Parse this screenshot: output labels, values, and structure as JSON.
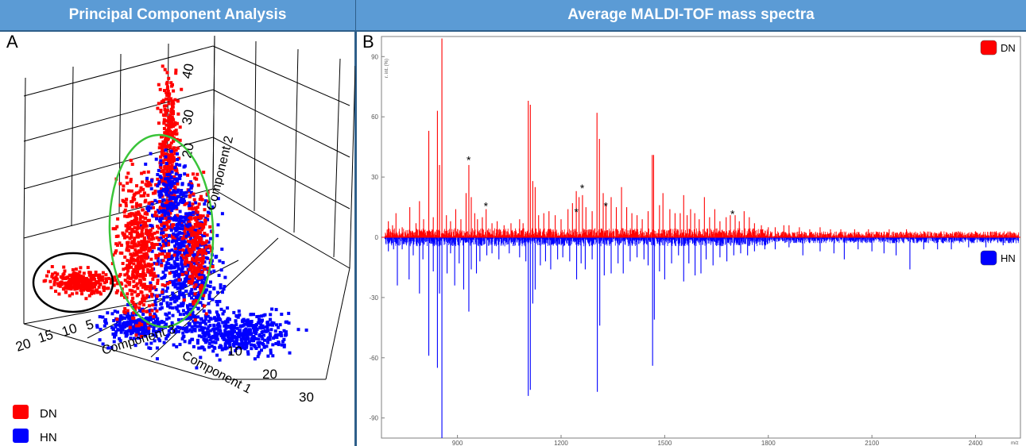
{
  "panel_a": {
    "header": "Principal Component Analysis",
    "letter": "A",
    "legend": [
      {
        "label": "DN",
        "color": "#ff0000"
      },
      {
        "label": "HN",
        "color": "#0000ff"
      }
    ]
  },
  "panel_b": {
    "header": "Average MALDI-TOF mass spectra",
    "letter": "B",
    "legend": [
      {
        "label": "DN",
        "color": "#ff0000"
      },
      {
        "label": "HN",
        "color": "#0000ff"
      }
    ]
  },
  "chart_data": [
    {
      "type": "scatter",
      "title": "Principal Component Analysis",
      "dimensions": 3,
      "axes": {
        "x": {
          "label": "Component 1",
          "ticks": [
            "10",
            "20",
            "30"
          ]
        },
        "y": {
          "label": "Component 3",
          "ticks": [
            "20",
            "15",
            "10",
            "5"
          ]
        },
        "z": {
          "label": "Component 2",
          "ticks": [
            "20",
            "30",
            "40"
          ]
        }
      },
      "series": [
        {
          "name": "DN",
          "color": "#ff0000"
        },
        {
          "name": "HN",
          "color": "#0000ff"
        }
      ],
      "annotations": [
        {
          "shape": "ellipse",
          "color": "#000000"
        },
        {
          "shape": "ellipse",
          "color": "#33cc33"
        }
      ],
      "legend": "bottom-left"
    },
    {
      "type": "line",
      "title": "Average MALDI-TOF mass spectra",
      "xlabel": "m/z",
      "ylabel": "r. int. (%)",
      "xlim": [
        680,
        2530
      ],
      "ylim": [
        -100,
        100
      ],
      "xticks": [
        900,
        1200,
        1500,
        1800,
        2100,
        2400
      ],
      "yticks": [
        90,
        60,
        30,
        0,
        -30,
        -60,
        -90
      ],
      "series": [
        {
          "name": "DN",
          "color": "#ff0000",
          "direction": "up",
          "peaks": [
            [
              700,
              8
            ],
            [
              712,
              6
            ],
            [
              722,
              12
            ],
            [
              740,
              5
            ],
            [
              762,
              15
            ],
            [
              780,
              7
            ],
            [
              790,
              18
            ],
            [
              802,
              9
            ],
            [
              817,
              53
            ],
            [
              830,
              10
            ],
            [
              842,
              63
            ],
            [
              848,
              36
            ],
            [
              855,
              99
            ],
            [
              868,
              11
            ],
            [
              880,
              8
            ],
            [
              895,
              14
            ],
            [
              910,
              9
            ],
            [
              925,
              22
            ],
            [
              933,
              36
            ],
            [
              940,
              20
            ],
            [
              950,
              12
            ],
            [
              958,
              9
            ],
            [
              972,
              10
            ],
            [
              983,
              14
            ],
            [
              1000,
              7
            ],
            [
              1015,
              8
            ],
            [
              1035,
              6
            ],
            [
              1055,
              7
            ],
            [
              1080,
              9
            ],
            [
              1090,
              7
            ],
            [
              1105,
              68
            ],
            [
              1111,
              66
            ],
            [
              1118,
              28
            ],
            [
              1125,
              25
            ],
            [
              1135,
              11
            ],
            [
              1150,
              12
            ],
            [
              1165,
              13
            ],
            [
              1183,
              11
            ],
            [
              1200,
              9
            ],
            [
              1220,
              14
            ],
            [
              1233,
              17
            ],
            [
              1244,
              23
            ],
            [
              1252,
              20
            ],
            [
              1262,
              21
            ],
            [
              1272,
              15
            ],
            [
              1290,
              13
            ],
            [
              1304,
              62
            ],
            [
              1311,
              49
            ],
            [
              1322,
              22
            ],
            [
              1330,
              17
            ],
            [
              1345,
              20
            ],
            [
              1360,
              15
            ],
            [
              1375,
              25
            ],
            [
              1390,
              15
            ],
            [
              1405,
              12
            ],
            [
              1420,
              11
            ],
            [
              1435,
              9
            ],
            [
              1452,
              13
            ],
            [
              1464,
              41
            ],
            [
              1468,
              41
            ],
            [
              1485,
              16
            ],
            [
              1495,
              22
            ],
            [
              1515,
              14
            ],
            [
              1530,
              12
            ],
            [
              1545,
              12
            ],
            [
              1555,
              21
            ],
            [
              1565,
              11
            ],
            [
              1575,
              14
            ],
            [
              1587,
              12
            ],
            [
              1600,
              9
            ],
            [
              1615,
              20
            ],
            [
              1630,
              10
            ],
            [
              1645,
              14
            ],
            [
              1660,
              8
            ],
            [
              1678,
              10
            ],
            [
              1690,
              11
            ],
            [
              1704,
              11
            ],
            [
              1716,
              8
            ],
            [
              1730,
              13
            ],
            [
              1745,
              10
            ],
            [
              1760,
              7
            ],
            [
              1780,
              6
            ],
            [
              1800,
              5
            ],
            [
              1820,
              5
            ],
            [
              1845,
              6
            ],
            [
              1860,
              6
            ],
            [
              1890,
              5
            ],
            [
              1920,
              4
            ],
            [
              1950,
              5
            ],
            [
              1980,
              4
            ],
            [
              2010,
              4
            ],
            [
              2050,
              4
            ],
            [
              2090,
              4
            ],
            [
              2150,
              4
            ],
            [
              2200,
              4
            ],
            [
              2250,
              3
            ],
            [
              2300,
              3
            ],
            [
              2350,
              3
            ],
            [
              2400,
              3
            ],
            [
              2460,
              3
            ],
            [
              2500,
              3
            ]
          ]
        },
        {
          "name": "HN",
          "color": "#0000ff",
          "direction": "down",
          "peaks": [
            [
              700,
              7
            ],
            [
              715,
              6
            ],
            [
              726,
              24
            ],
            [
              740,
              6
            ],
            [
              760,
              21
            ],
            [
              772,
              9
            ],
            [
              790,
              28
            ],
            [
              800,
              11
            ],
            [
              817,
              59
            ],
            [
              830,
              17
            ],
            [
              842,
              65
            ],
            [
              848,
              28
            ],
            [
              855,
              100
            ],
            [
              870,
              18
            ],
            [
              880,
              8
            ],
            [
              892,
              24
            ],
            [
              905,
              13
            ],
            [
              918,
              26
            ],
            [
              933,
              37
            ],
            [
              940,
              16
            ],
            [
              955,
              18
            ],
            [
              965,
              12
            ],
            [
              985,
              9
            ],
            [
              1000,
              8
            ],
            [
              1020,
              11
            ],
            [
              1050,
              8
            ],
            [
              1080,
              10
            ],
            [
              1098,
              12
            ],
            [
              1105,
              79
            ],
            [
              1111,
              76
            ],
            [
              1118,
              33
            ],
            [
              1125,
              26
            ],
            [
              1140,
              14
            ],
            [
              1155,
              12
            ],
            [
              1170,
              16
            ],
            [
              1190,
              11
            ],
            [
              1205,
              10
            ],
            [
              1225,
              12
            ],
            [
              1245,
              21
            ],
            [
              1258,
              13
            ],
            [
              1270,
              16
            ],
            [
              1290,
              11
            ],
            [
              1305,
              77
            ],
            [
              1312,
              44
            ],
            [
              1325,
              19
            ],
            [
              1345,
              18
            ],
            [
              1365,
              13
            ],
            [
              1380,
              18
            ],
            [
              1400,
              12
            ],
            [
              1420,
              10
            ],
            [
              1440,
              11
            ],
            [
              1452,
              14
            ],
            [
              1465,
              64
            ],
            [
              1470,
              41
            ],
            [
              1485,
              17
            ],
            [
              1500,
              21
            ],
            [
              1520,
              13
            ],
            [
              1540,
              9
            ],
            [
              1555,
              22
            ],
            [
              1570,
              13
            ],
            [
              1588,
              19
            ],
            [
              1605,
              18
            ],
            [
              1620,
              11
            ],
            [
              1640,
              14
            ],
            [
              1660,
              10
            ],
            [
              1680,
              12
            ],
            [
              1700,
              9
            ],
            [
              1720,
              8
            ],
            [
              1740,
              9
            ],
            [
              1760,
              7
            ],
            [
              1790,
              6
            ],
            [
              1820,
              6
            ],
            [
              1860,
              5
            ],
            [
              1900,
              9
            ],
            [
              1950,
              7
            ],
            [
              1990,
              8
            ],
            [
              2020,
              11
            ],
            [
              2060,
              6
            ],
            [
              2100,
              7
            ],
            [
              2135,
              8
            ],
            [
              2170,
              9
            ],
            [
              2210,
              16
            ],
            [
              2250,
              6
            ],
            [
              2290,
              6
            ],
            [
              2330,
              6
            ],
            [
              2380,
              5
            ],
            [
              2430,
              5
            ],
            [
              2480,
              4
            ]
          ]
        }
      ],
      "annotations": {
        "symbol": "*",
        "positions": [
          [
            933,
            37
          ],
          [
            983,
            14
          ],
          [
            1245,
            11
          ],
          [
            1262,
            23
          ],
          [
            1330,
            14
          ],
          [
            1697,
            10
          ]
        ]
      },
      "legend": "right"
    }
  ]
}
